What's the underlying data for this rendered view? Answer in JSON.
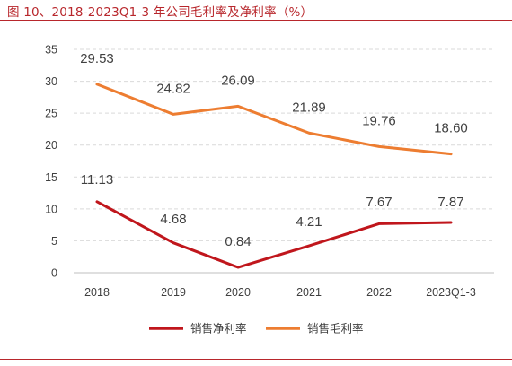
{
  "figure": {
    "title": "图 10、2018-2023Q1-3 年公司毛利率及净利率（%）"
  },
  "chart_data": {
    "type": "line",
    "categories": [
      "2018",
      "2019",
      "2020",
      "2021",
      "2022",
      "2023Q1-3"
    ],
    "ylim": [
      0,
      35
    ],
    "yticks": [
      0,
      5,
      10,
      15,
      20,
      25,
      30,
      35
    ],
    "grid": "horizontal dashed",
    "legend_position": "bottom",
    "series": [
      {
        "name": "销售净利率",
        "color": "#c0161c",
        "values": [
          11.13,
          4.68,
          0.84,
          4.21,
          7.67,
          7.87
        ],
        "labels": [
          "11.13",
          "4.68",
          "0.84",
          "4.21",
          "7.67",
          "7.87"
        ]
      },
      {
        "name": "销售毛利率",
        "color": "#ed7d31",
        "values": [
          29.53,
          24.82,
          26.09,
          21.89,
          19.76,
          18.6
        ],
        "labels": [
          "29.53",
          "24.82",
          "26.09",
          "21.89",
          "19.76",
          "18.60"
        ]
      }
    ]
  }
}
